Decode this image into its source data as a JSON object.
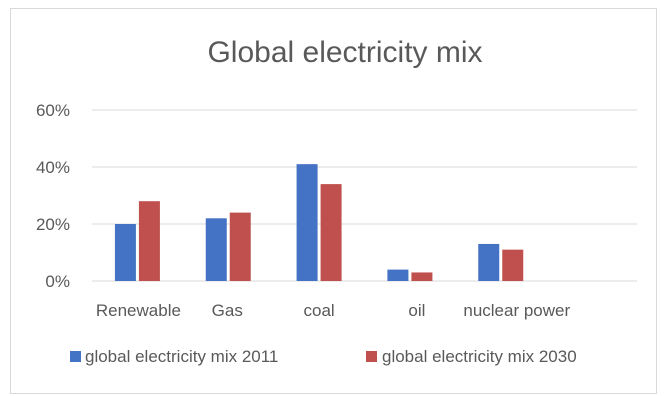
{
  "chart_data": {
    "type": "bar",
    "title": "Global electricity mix",
    "categories": [
      "Renewable",
      "Gas",
      "coal",
      "oil",
      "nuclear power",
      ""
    ],
    "series": [
      {
        "name": "global electricity mix 2011",
        "values": [
          20,
          22,
          41,
          4,
          13,
          null
        ],
        "color": "#4472C4"
      },
      {
        "name": "global electricity mix 2030",
        "values": [
          28,
          24,
          34,
          3,
          11,
          null
        ],
        "color": "#C0504D"
      }
    ],
    "y_ticks": [
      "0%",
      "20%",
      "40%",
      "60%"
    ],
    "ylim": [
      0,
      60
    ],
    "grid": true,
    "legend": "bottom"
  }
}
